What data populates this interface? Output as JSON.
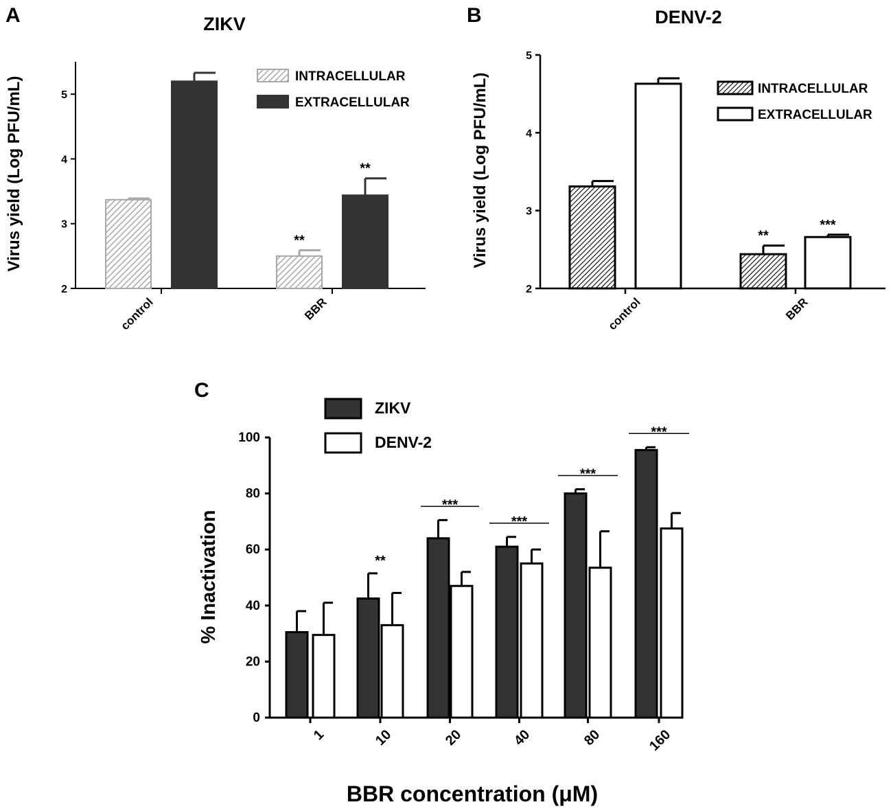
{
  "chart_data": [
    {
      "panel": "A",
      "type": "bar",
      "title": "ZIKV",
      "xlabel": "",
      "ylabel": "Virus yield (Log PFU/mL)",
      "ylim": [
        2,
        5.5
      ],
      "yticks": [
        2,
        3,
        4,
        5
      ],
      "categories": [
        "control",
        "BBR"
      ],
      "series": [
        {
          "name": "INTRACELLULAR",
          "values": [
            3.37,
            2.5
          ],
          "errors": [
            0.02,
            0.09
          ],
          "fill": "hatch",
          "color": "#a8a8a8"
        },
        {
          "name": "EXTRACELLULAR",
          "values": [
            5.2,
            3.44
          ],
          "errors": [
            0.13,
            0.26
          ],
          "fill": "solid",
          "color": "#333333"
        }
      ],
      "significance": [
        {
          "category": 1,
          "series": 0,
          "label": "**"
        },
        {
          "category": 1,
          "series": 1,
          "label": "**"
        }
      ],
      "legend": "top-right",
      "grid": false
    },
    {
      "panel": "B",
      "type": "bar",
      "title": "DENV-2",
      "xlabel": "",
      "ylabel": "Virus yield (Log PFU/mL)",
      "ylim": [
        2,
        5
      ],
      "yticks": [
        2,
        3,
        4,
        5
      ],
      "categories": [
        "control",
        "BBR"
      ],
      "series": [
        {
          "name": "INTRACELLULAR",
          "values": [
            3.31,
            2.44
          ],
          "errors": [
            0.07,
            0.11
          ],
          "fill": "hatch",
          "color": "#000000"
        },
        {
          "name": "EXTRACELLULAR",
          "values": [
            4.63,
            2.66
          ],
          "errors": [
            0.07,
            0.03
          ],
          "fill": "open",
          "color": "#000000"
        }
      ],
      "significance": [
        {
          "category": 1,
          "series": 0,
          "label": "**"
        },
        {
          "category": 1,
          "series": 1,
          "label": "***"
        }
      ],
      "legend": "right",
      "grid": false
    },
    {
      "panel": "C",
      "type": "bar",
      "title": "",
      "xlabel": "BBR concentration (μM)",
      "ylabel": "% Inactivation",
      "ylim": [
        0,
        100
      ],
      "yticks": [
        0,
        20,
        40,
        60,
        80,
        100
      ],
      "categories": [
        "1",
        "10",
        "20",
        "40",
        "80",
        "160"
      ],
      "series": [
        {
          "name": "ZIKV",
          "values": [
            30.5,
            42.5,
            64,
            61,
            80,
            95.5
          ],
          "errors": [
            7.5,
            9,
            6.5,
            3.5,
            1.5,
            1
          ],
          "fill": "solid",
          "color": "#333333"
        },
        {
          "name": "DENV-2",
          "values": [
            29.5,
            33,
            47,
            55,
            53.5,
            67.5
          ],
          "errors": [
            11.5,
            11.5,
            5,
            5,
            13,
            5.5
          ],
          "fill": "open",
          "color": "#000000"
        }
      ],
      "significance": [
        {
          "category": 1,
          "label": "**",
          "bracket": false
        },
        {
          "category": 2,
          "label": "***",
          "bracket": true
        },
        {
          "category": 3,
          "label": "***",
          "bracket": true
        },
        {
          "category": 4,
          "label": "***",
          "bracket": true
        },
        {
          "category": 5,
          "label": "***",
          "bracket": true
        }
      ],
      "legend": "top-left",
      "grid": false
    }
  ]
}
